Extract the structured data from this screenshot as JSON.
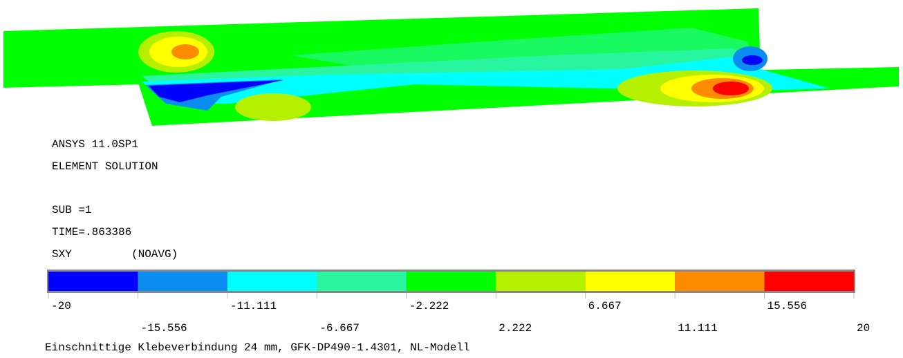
{
  "header": {
    "lines": [
      "ANSYS 11.0SP1",
      "ELEMENT SOLUTION",
      "SUB =1",
      "TIME=.863386",
      "SXY",
      "(NOAVG)"
    ]
  },
  "legend": {
    "colors": [
      "#0000ff",
      "#0a8cf0",
      "#00ffff",
      "#2af5a0",
      "#00ff00",
      "#b4f000",
      "#ffff00",
      "#ff8c00",
      "#ff0000"
    ],
    "ticks": [
      "-20",
      "-15.556",
      "-11.111",
      "-6.667",
      "-2.222",
      "2.222",
      "6.667",
      "11.111",
      "15.556",
      "20"
    ]
  },
  "footer": {
    "title": "Einschnittige Klebeverbindung 24 mm, GFK-DP490-1.4301, NL-Modell"
  }
}
